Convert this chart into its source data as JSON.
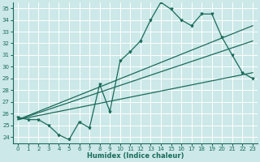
{
  "title": "",
  "xlabel": "Humidex (Indice chaleur)",
  "xlim": [
    -0.5,
    23.5
  ],
  "ylim": [
    23.5,
    35.5
  ],
  "yticks": [
    24,
    25,
    26,
    27,
    28,
    29,
    30,
    31,
    32,
    33,
    34,
    35
  ],
  "xticks": [
    0,
    1,
    2,
    3,
    4,
    5,
    6,
    7,
    8,
    9,
    10,
    11,
    12,
    13,
    14,
    15,
    16,
    17,
    18,
    19,
    20,
    21,
    22,
    23
  ],
  "bg_color": "#cce8e8",
  "line_color": "#1a6b5a",
  "grid_color": "#ffffff",
  "series1_x": [
    0,
    1,
    2,
    3,
    4,
    5,
    6,
    7,
    8,
    9,
    10,
    11,
    12,
    13,
    14,
    15,
    16,
    17,
    18,
    19,
    20,
    21,
    22,
    23
  ],
  "series1_y": [
    25.7,
    25.5,
    25.5,
    25.0,
    24.2,
    23.8,
    25.3,
    24.8,
    28.5,
    26.2,
    30.5,
    31.3,
    32.2,
    34.0,
    35.5,
    34.9,
    34.0,
    33.5,
    34.5,
    34.5,
    32.5,
    31.0,
    29.5,
    29.0
  ],
  "line1_x": [
    0,
    23
  ],
  "line1_y": [
    25.5,
    29.5
  ],
  "line2_x": [
    0,
    23
  ],
  "line2_y": [
    25.5,
    32.2
  ],
  "line3_x": [
    0,
    23
  ],
  "line3_y": [
    25.5,
    33.5
  ]
}
